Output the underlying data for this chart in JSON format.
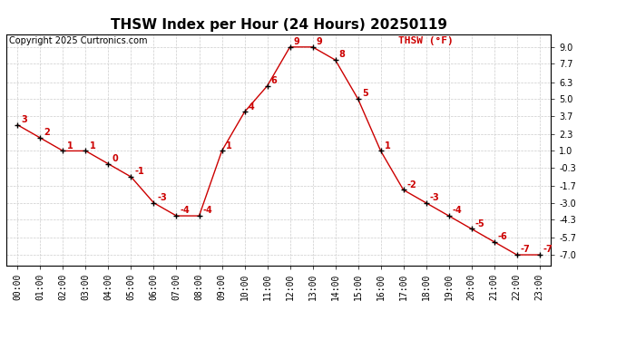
{
  "title": "THSW Index per Hour (24 Hours) 20250119",
  "copyright": "Copyright 2025 Curtronics.com",
  "legend_label": "THSW (°F)",
  "hours": [
    "00:00",
    "01:00",
    "02:00",
    "03:00",
    "04:00",
    "05:00",
    "06:00",
    "07:00",
    "08:00",
    "09:00",
    "10:00",
    "11:00",
    "12:00",
    "13:00",
    "14:00",
    "15:00",
    "16:00",
    "17:00",
    "18:00",
    "19:00",
    "20:00",
    "21:00",
    "22:00",
    "23:00"
  ],
  "values": [
    3,
    2,
    1,
    1,
    0,
    -1,
    -3,
    -4,
    -4,
    1,
    4,
    6,
    9,
    9,
    8,
    5,
    1,
    -2,
    -3,
    -4,
    -5,
    -6,
    -7,
    -7
  ],
  "line_color": "#cc0000",
  "marker_color": "#000000",
  "label_color": "#cc0000",
  "background_color": "#ffffff",
  "grid_color": "#cccccc",
  "yticks": [
    9.0,
    7.7,
    6.3,
    5.0,
    3.7,
    2.3,
    1.0,
    -0.3,
    -1.7,
    -3.0,
    -4.3,
    -5.7,
    -7.0
  ],
  "ymin": -7.8,
  "ymax": 10.0,
  "title_fontsize": 11,
  "copyright_fontsize": 7,
  "label_fontsize": 7,
  "tick_fontsize": 7,
  "legend_fontsize": 8
}
